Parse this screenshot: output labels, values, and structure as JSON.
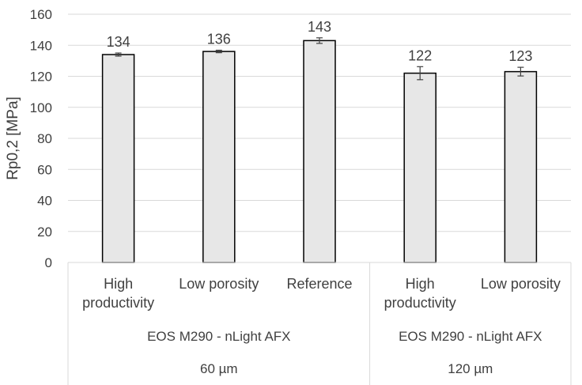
{
  "chart_data": {
    "type": "bar",
    "title": "",
    "ylabel": "Rp0,2 [MPa]",
    "ylim": [
      0,
      160
    ],
    "yticks": [
      0,
      20,
      40,
      60,
      80,
      100,
      120,
      140,
      160
    ],
    "grid": true,
    "legend": "none",
    "categories": [
      {
        "label_lines": [
          "High",
          "productivity"
        ],
        "group": 0
      },
      {
        "label_lines": [
          "Low porosity"
        ],
        "group": 0
      },
      {
        "label_lines": [
          "Reference"
        ],
        "group": 0
      },
      {
        "label_lines": [
          "High",
          "productivity"
        ],
        "group": 1
      },
      {
        "label_lines": [
          "Low porosity"
        ],
        "group": 1
      }
    ],
    "values": [
      134,
      136,
      143,
      122,
      123
    ],
    "data_labels": [
      "134",
      "136",
      "143",
      "122",
      "123"
    ],
    "error": [
      1,
      0.8,
      1.8,
      4.2,
      2.8
    ],
    "groups": [
      {
        "machine": "EOS M290 - nLight AFX",
        "layer": "60 µm"
      },
      {
        "machine": "EOS M290 - nLight AFX",
        "layer": "120 µm"
      }
    ],
    "colors": {
      "bar_fill": "#e7e7e7",
      "bar_stroke": "#000000",
      "grid": "#d9d9d9",
      "text": "#404040",
      "error": "#404040"
    }
  }
}
